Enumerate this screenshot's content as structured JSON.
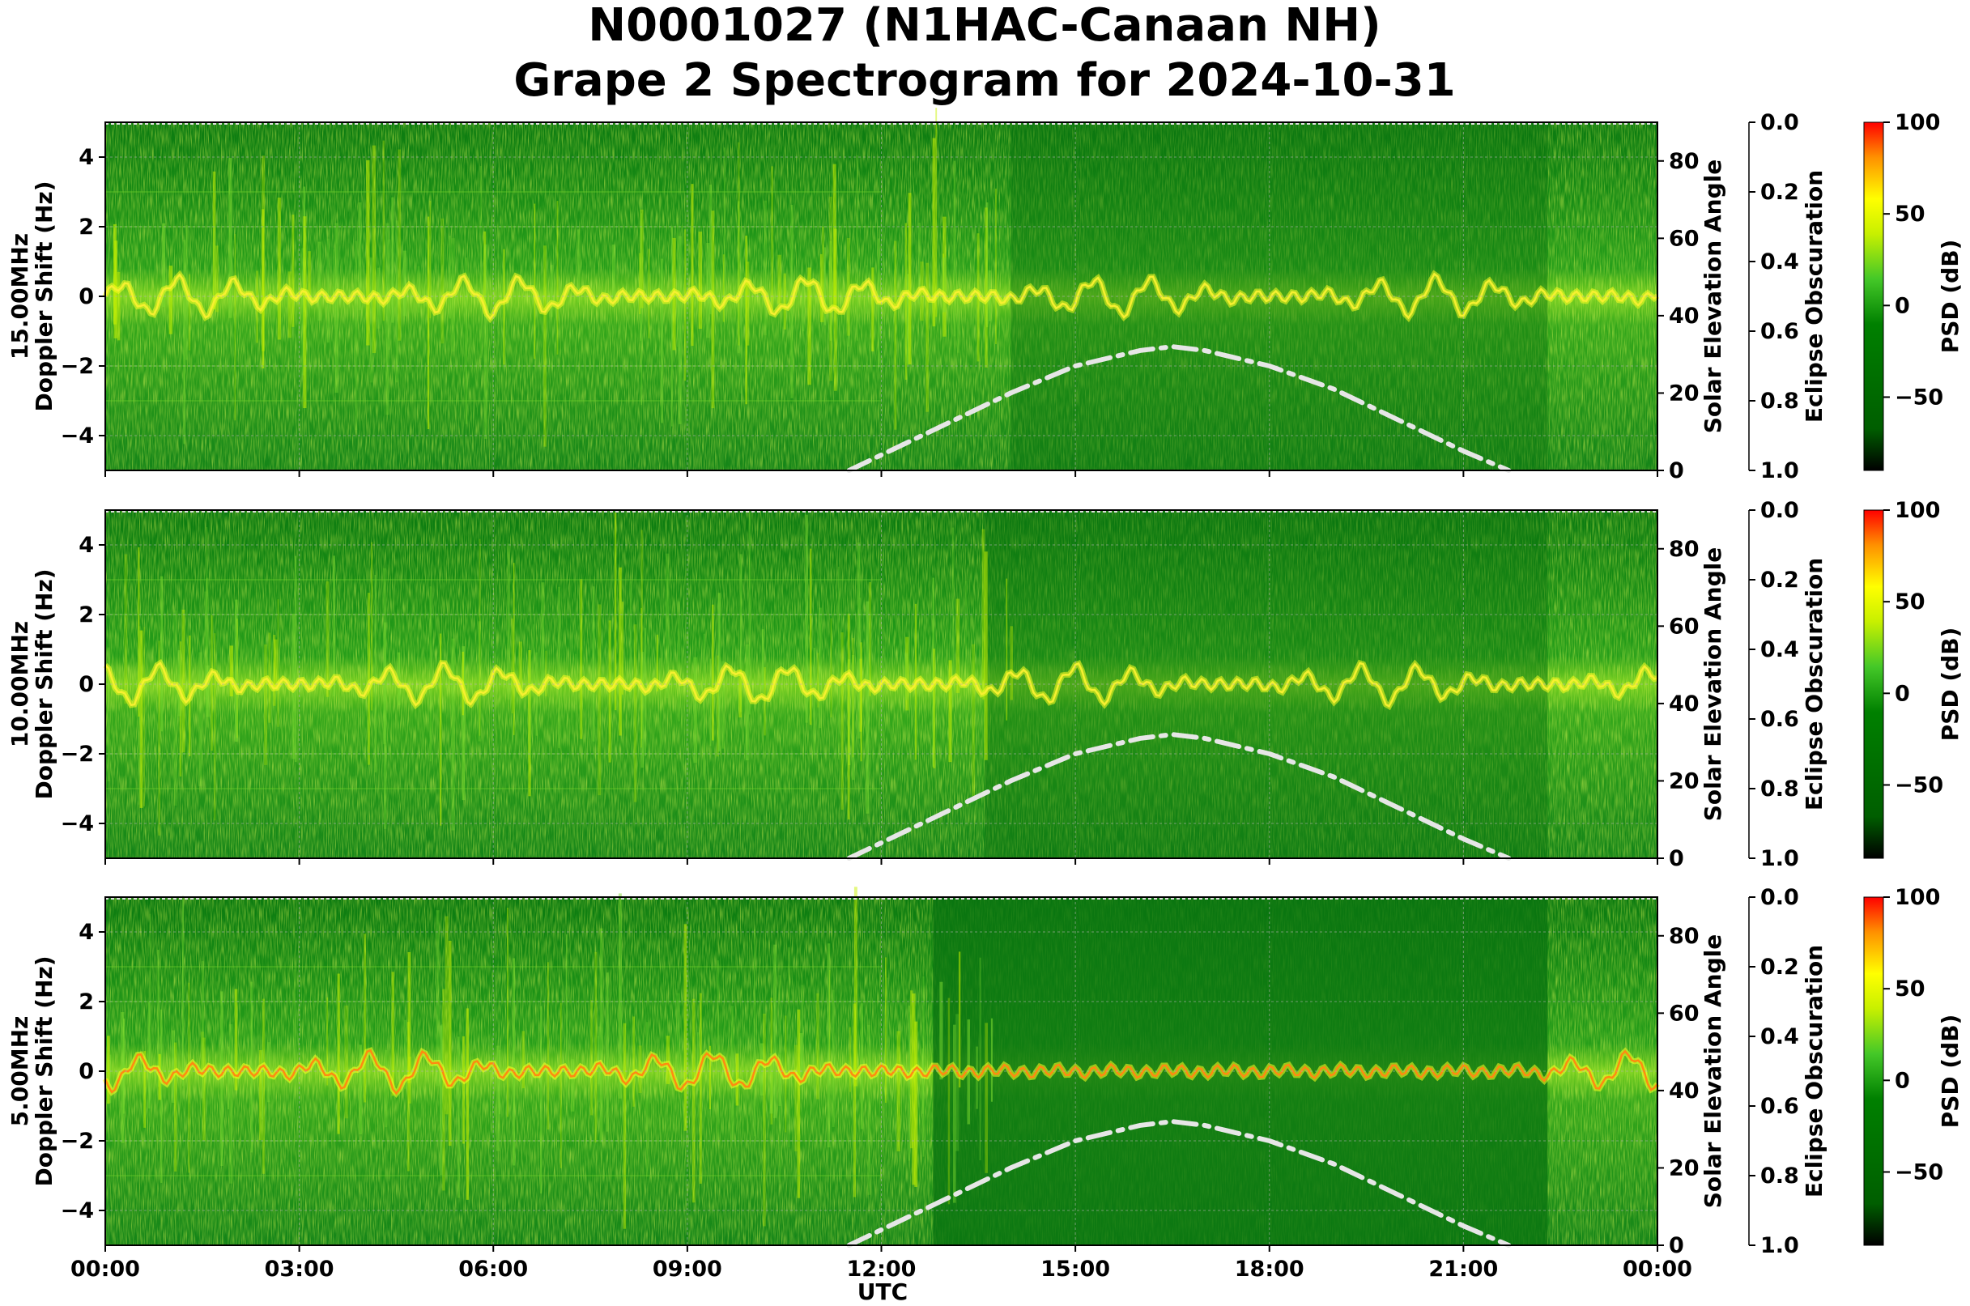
{
  "figure": {
    "title_line1": "N0001027 (N1HAC-Canaan NH)",
    "title_line2": "Grape 2 Spectrogram for 2024-10-31",
    "xlabel": "UTC"
  },
  "chart_data": [
    {
      "type": "heatmap",
      "panel": "15MHz",
      "ylabel_line1": "15.00MHz",
      "ylabel_line2": "Doppler Shift (Hz)",
      "xticks": [
        "00:00",
        "03:00",
        "06:00",
        "09:00",
        "12:00",
        "15:00",
        "18:00",
        "21:00",
        "00:00"
      ],
      "xlim_hours": [
        0,
        24
      ],
      "ylim": [
        -5,
        5
      ],
      "yticks": [
        4,
        2,
        0,
        -2,
        -4
      ],
      "grid": true,
      "solar_elevation": {
        "label": "Solar Elevation Angle",
        "ylim": [
          0,
          90
        ],
        "ticks": [
          80,
          60,
          40,
          20,
          0
        ],
        "curve": {
          "x": [
            11.5,
            12,
            13,
            14,
            15,
            16,
            16.5,
            17,
            18,
            19,
            20,
            21,
            21.7
          ],
          "y": [
            0,
            4,
            12,
            20,
            27,
            31,
            32,
            31,
            27,
            21,
            13,
            5,
            0
          ]
        }
      },
      "eclipse_obscuration": {
        "label": "Eclipse Obscuration",
        "ylim": [
          0.0,
          1.0
        ],
        "ticks": [
          "0.0",
          "0.2",
          "0.4",
          "0.6",
          "0.8",
          "1.0"
        ]
      },
      "colorbar": {
        "label": "PSD (dB)",
        "range": [
          -90,
          100
        ],
        "ticks": [
          "100",
          "50",
          "0",
          "−50"
        ],
        "colors": [
          "#000000",
          "#006400",
          "#008000",
          "#32cd32",
          "#c8ff00",
          "#ffff00",
          "#ff8000",
          "#ff0000"
        ]
      }
    },
    {
      "type": "heatmap",
      "panel": "10MHz",
      "ylabel_line1": "10.00MHz",
      "ylabel_line2": "Doppler Shift (Hz)",
      "xticks": [
        "00:00",
        "03:00",
        "06:00",
        "09:00",
        "12:00",
        "15:00",
        "18:00",
        "21:00",
        "00:00"
      ],
      "xlim_hours": [
        0,
        24
      ],
      "ylim": [
        -5,
        5
      ],
      "yticks": [
        4,
        2,
        0,
        -2,
        -4
      ],
      "grid": true,
      "solar_elevation": {
        "label": "Solar Elevation Angle",
        "ylim": [
          0,
          90
        ],
        "ticks": [
          80,
          60,
          40,
          20,
          0
        ],
        "curve": {
          "x": [
            11.5,
            12,
            13,
            14,
            15,
            16,
            16.5,
            17,
            18,
            19,
            20,
            21,
            21.7
          ],
          "y": [
            0,
            4,
            12,
            20,
            27,
            31,
            32,
            31,
            27,
            21,
            13,
            5,
            0
          ]
        }
      },
      "eclipse_obscuration": {
        "label": "Eclipse Obscuration",
        "ylim": [
          0.0,
          1.0
        ],
        "ticks": [
          "0.0",
          "0.2",
          "0.4",
          "0.6",
          "0.8",
          "1.0"
        ]
      },
      "colorbar": {
        "label": "PSD (dB)",
        "range": [
          -90,
          100
        ],
        "ticks": [
          "100",
          "50",
          "0",
          "−50"
        ],
        "colors": [
          "#000000",
          "#006400",
          "#008000",
          "#32cd32",
          "#c8ff00",
          "#ffff00",
          "#ff8000",
          "#ff0000"
        ]
      }
    },
    {
      "type": "heatmap",
      "panel": "5MHz",
      "ylabel_line1": "5.00MHz",
      "ylabel_line2": "Doppler Shift (Hz)",
      "xticks": [
        "00:00",
        "03:00",
        "06:00",
        "09:00",
        "12:00",
        "15:00",
        "18:00",
        "21:00",
        "00:00"
      ],
      "xlim_hours": [
        0,
        24
      ],
      "ylim": [
        -5,
        5
      ],
      "yticks": [
        4,
        2,
        0,
        -2,
        -4
      ],
      "grid": true,
      "solar_elevation": {
        "label": "Solar Elevation Angle",
        "ylim": [
          0,
          90
        ],
        "ticks": [
          80,
          60,
          40,
          20,
          0
        ],
        "curve": {
          "x": [
            11.5,
            12,
            13,
            14,
            15,
            16,
            16.5,
            17,
            18,
            19,
            20,
            21,
            21.7
          ],
          "y": [
            0,
            4,
            12,
            20,
            27,
            31,
            32,
            31,
            27,
            21,
            13,
            5,
            0
          ]
        }
      },
      "eclipse_obscuration": {
        "label": "Eclipse Obscuration",
        "ylim": [
          0.0,
          1.0
        ],
        "ticks": [
          "0.0",
          "0.2",
          "0.4",
          "0.6",
          "0.8",
          "1.0"
        ]
      },
      "colorbar": {
        "label": "PSD (dB)",
        "range": [
          -90,
          100
        ],
        "ticks": [
          "100",
          "50",
          "0",
          "−50"
        ],
        "colors": [
          "#000000",
          "#006400",
          "#008000",
          "#32cd32",
          "#c8ff00",
          "#ffff00",
          "#ff8000",
          "#ff0000"
        ]
      }
    }
  ]
}
